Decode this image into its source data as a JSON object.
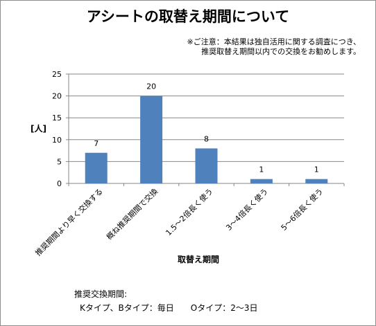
{
  "title": "アシートの取替え期間について",
  "note": {
    "line1": "※ご注意：本結果は独自活用に関する調査につき、",
    "line2": "推奨取替え期間以内での交換をお勧めします。"
  },
  "footer": {
    "line1": "推奨交換期間:",
    "line2": "Kタイプ、Bタイプ：毎日　　Oタイプ：2～3日"
  },
  "colors": {
    "bar": "#4f81bd",
    "grid": "#868686",
    "axis": "#868686"
  },
  "chart_data": {
    "type": "bar",
    "categories": [
      "推奨期間より早く交換する",
      "概ね推奨期間で交換",
      "1.5～2倍長く使う",
      "3～4倍長く使う",
      "5～6倍長く使う"
    ],
    "values": [
      7,
      20,
      8,
      1,
      1
    ],
    "ylabel": "[人]",
    "xlabel": "取替え期間",
    "ylim": [
      0,
      25
    ],
    "yticks": [
      0,
      5,
      10,
      15,
      20,
      25
    ],
    "grid": true,
    "legend": "none"
  }
}
